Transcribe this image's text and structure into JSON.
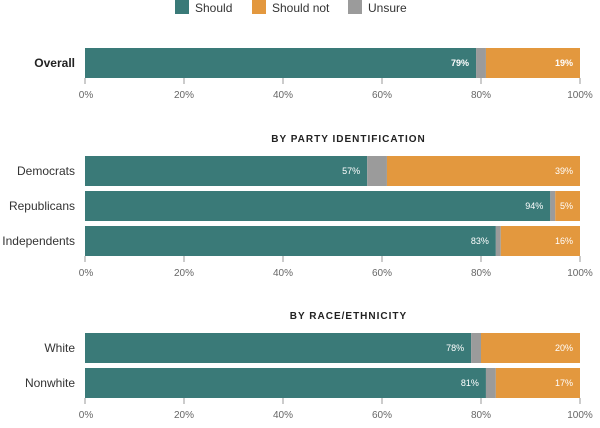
{
  "chart_data": {
    "type": "bar",
    "stacked": true,
    "orientation": "horizontal",
    "xlim": [
      0,
      100
    ],
    "ticks": [
      "0%",
      "20%",
      "40%",
      "60%",
      "80%",
      "100%"
    ],
    "legend": {
      "placement": "top",
      "items": [
        {
          "label": "Should",
          "color": "#3a7a78"
        },
        {
          "label": "Should not",
          "color": "#e3983e"
        },
        {
          "label": "Unsure",
          "color": "#9b9b9b"
        }
      ]
    },
    "groups": [
      {
        "title": "",
        "rows": [
          {
            "label": "Overall",
            "should": 79,
            "unsure": 2,
            "should_not": 19,
            "should_label": "79%",
            "should_not_label": "19%"
          }
        ]
      },
      {
        "title": "BY PARTY IDENTIFICATION",
        "rows": [
          {
            "label": "Democrats",
            "should": 57,
            "unsure": 4,
            "should_not": 39,
            "should_label": "57%",
            "should_not_label": "39%"
          },
          {
            "label": "Republicans",
            "should": 94,
            "unsure": 1,
            "should_not": 5,
            "should_label": "94%",
            "should_not_label": "5%"
          },
          {
            "label": "Independents",
            "should": 83,
            "unsure": 1,
            "should_not": 16,
            "should_label": "83%",
            "should_not_label": "16%"
          }
        ]
      },
      {
        "title": "BY RACE/ETHNICITY",
        "rows": [
          {
            "label": "White",
            "should": 78,
            "unsure": 2,
            "should_not": 20,
            "should_label": "78%",
            "should_not_label": "20%"
          },
          {
            "label": "Nonwhite",
            "should": 81,
            "unsure": 2,
            "should_not": 17,
            "should_label": "81%",
            "should_not_label": "17%"
          }
        ]
      }
    ]
  }
}
